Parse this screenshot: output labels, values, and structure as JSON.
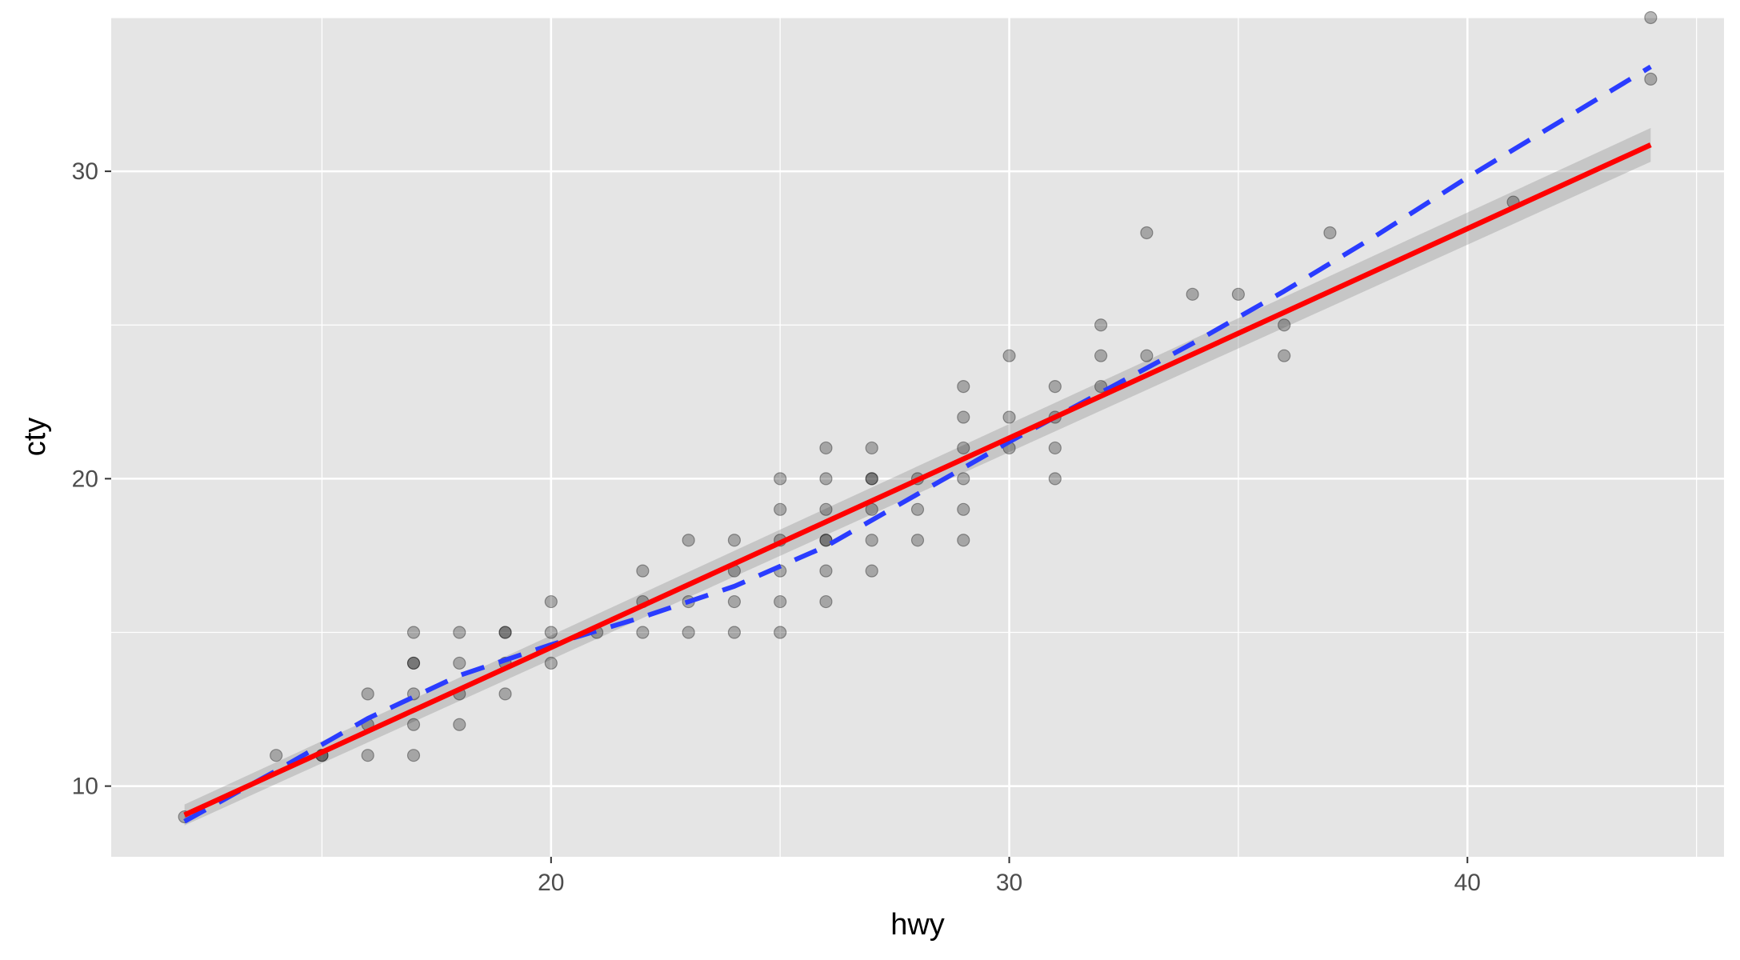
{
  "chart_data": {
    "type": "scatter",
    "title": "",
    "xlabel": "hwy",
    "ylabel": "cty",
    "xlim": [
      10.4,
      45.6
    ],
    "ylim": [
      7.7,
      35.0
    ],
    "x_ticks": [
      20,
      30,
      40
    ],
    "y_ticks": [
      10,
      20,
      30
    ],
    "x_minor_ticks": [
      15,
      25,
      35,
      45
    ],
    "y_minor_ticks": [
      15,
      25,
      35
    ],
    "grid": true,
    "legend": "none",
    "colors": {
      "panel_background": "#e5e5e5",
      "grid": "#ffffff",
      "points": "#000000",
      "smooth_line": "#ff0000",
      "confidence_band": "#999999",
      "dashed_line": "#2a3cff"
    },
    "points": {
      "x": [
        12,
        14,
        15,
        15,
        16,
        16,
        16,
        17,
        17,
        17,
        17,
        17,
        17,
        18,
        18,
        18,
        18,
        19,
        19,
        19,
        19,
        20,
        20,
        20,
        21,
        22,
        22,
        22,
        23,
        23,
        23,
        24,
        24,
        24,
        24,
        25,
        25,
        25,
        25,
        25,
        25,
        26,
        26,
        26,
        26,
        26,
        26,
        26,
        27,
        27,
        27,
        27,
        27,
        27,
        28,
        28,
        28,
        29,
        29,
        29,
        29,
        29,
        29,
        30,
        30,
        30,
        31,
        31,
        31,
        31,
        32,
        32,
        32,
        33,
        33,
        34,
        35,
        36,
        36,
        37,
        41,
        44,
        44
      ],
      "y": [
        9,
        11,
        11,
        11,
        11,
        12,
        13,
        11,
        12,
        13,
        14,
        14,
        15,
        12,
        13,
        14,
        15,
        13,
        14,
        15,
        15,
        14,
        15,
        16,
        15,
        15,
        16,
        17,
        15,
        16,
        18,
        15,
        16,
        17,
        18,
        15,
        16,
        17,
        18,
        19,
        20,
        16,
        17,
        18,
        18,
        19,
        20,
        21,
        17,
        18,
        19,
        20,
        20,
        21,
        18,
        19,
        20,
        18,
        19,
        20,
        21,
        22,
        23,
        21,
        22,
        24,
        20,
        21,
        22,
        23,
        23,
        24,
        25,
        24,
        28,
        26,
        26,
        24,
        25,
        28,
        29,
        33,
        35
      ]
    },
    "series": [
      {
        "name": "",
        "type": "smooth",
        "style": "solid",
        "color": "#ff0000",
        "x": [
          12,
          44
        ],
        "y": [
          9.06,
          30.86
        ],
        "band_lower": [
          8.72,
          30.31
        ],
        "band_upper": [
          9.4,
          31.41
        ]
      },
      {
        "name": "",
        "type": "line",
        "style": "dashed",
        "color": "#2a3cff",
        "x": [
          12,
          14,
          16,
          18,
          20,
          22,
          24,
          26,
          28,
          30,
          32,
          34,
          36,
          38,
          40,
          42,
          44
        ],
        "y": [
          8.85,
          10.5,
          12.2,
          13.6,
          14.6,
          15.5,
          16.5,
          17.8,
          19.5,
          21.2,
          22.8,
          24.4,
          26.1,
          27.9,
          29.8,
          31.6,
          33.4
        ]
      }
    ]
  }
}
